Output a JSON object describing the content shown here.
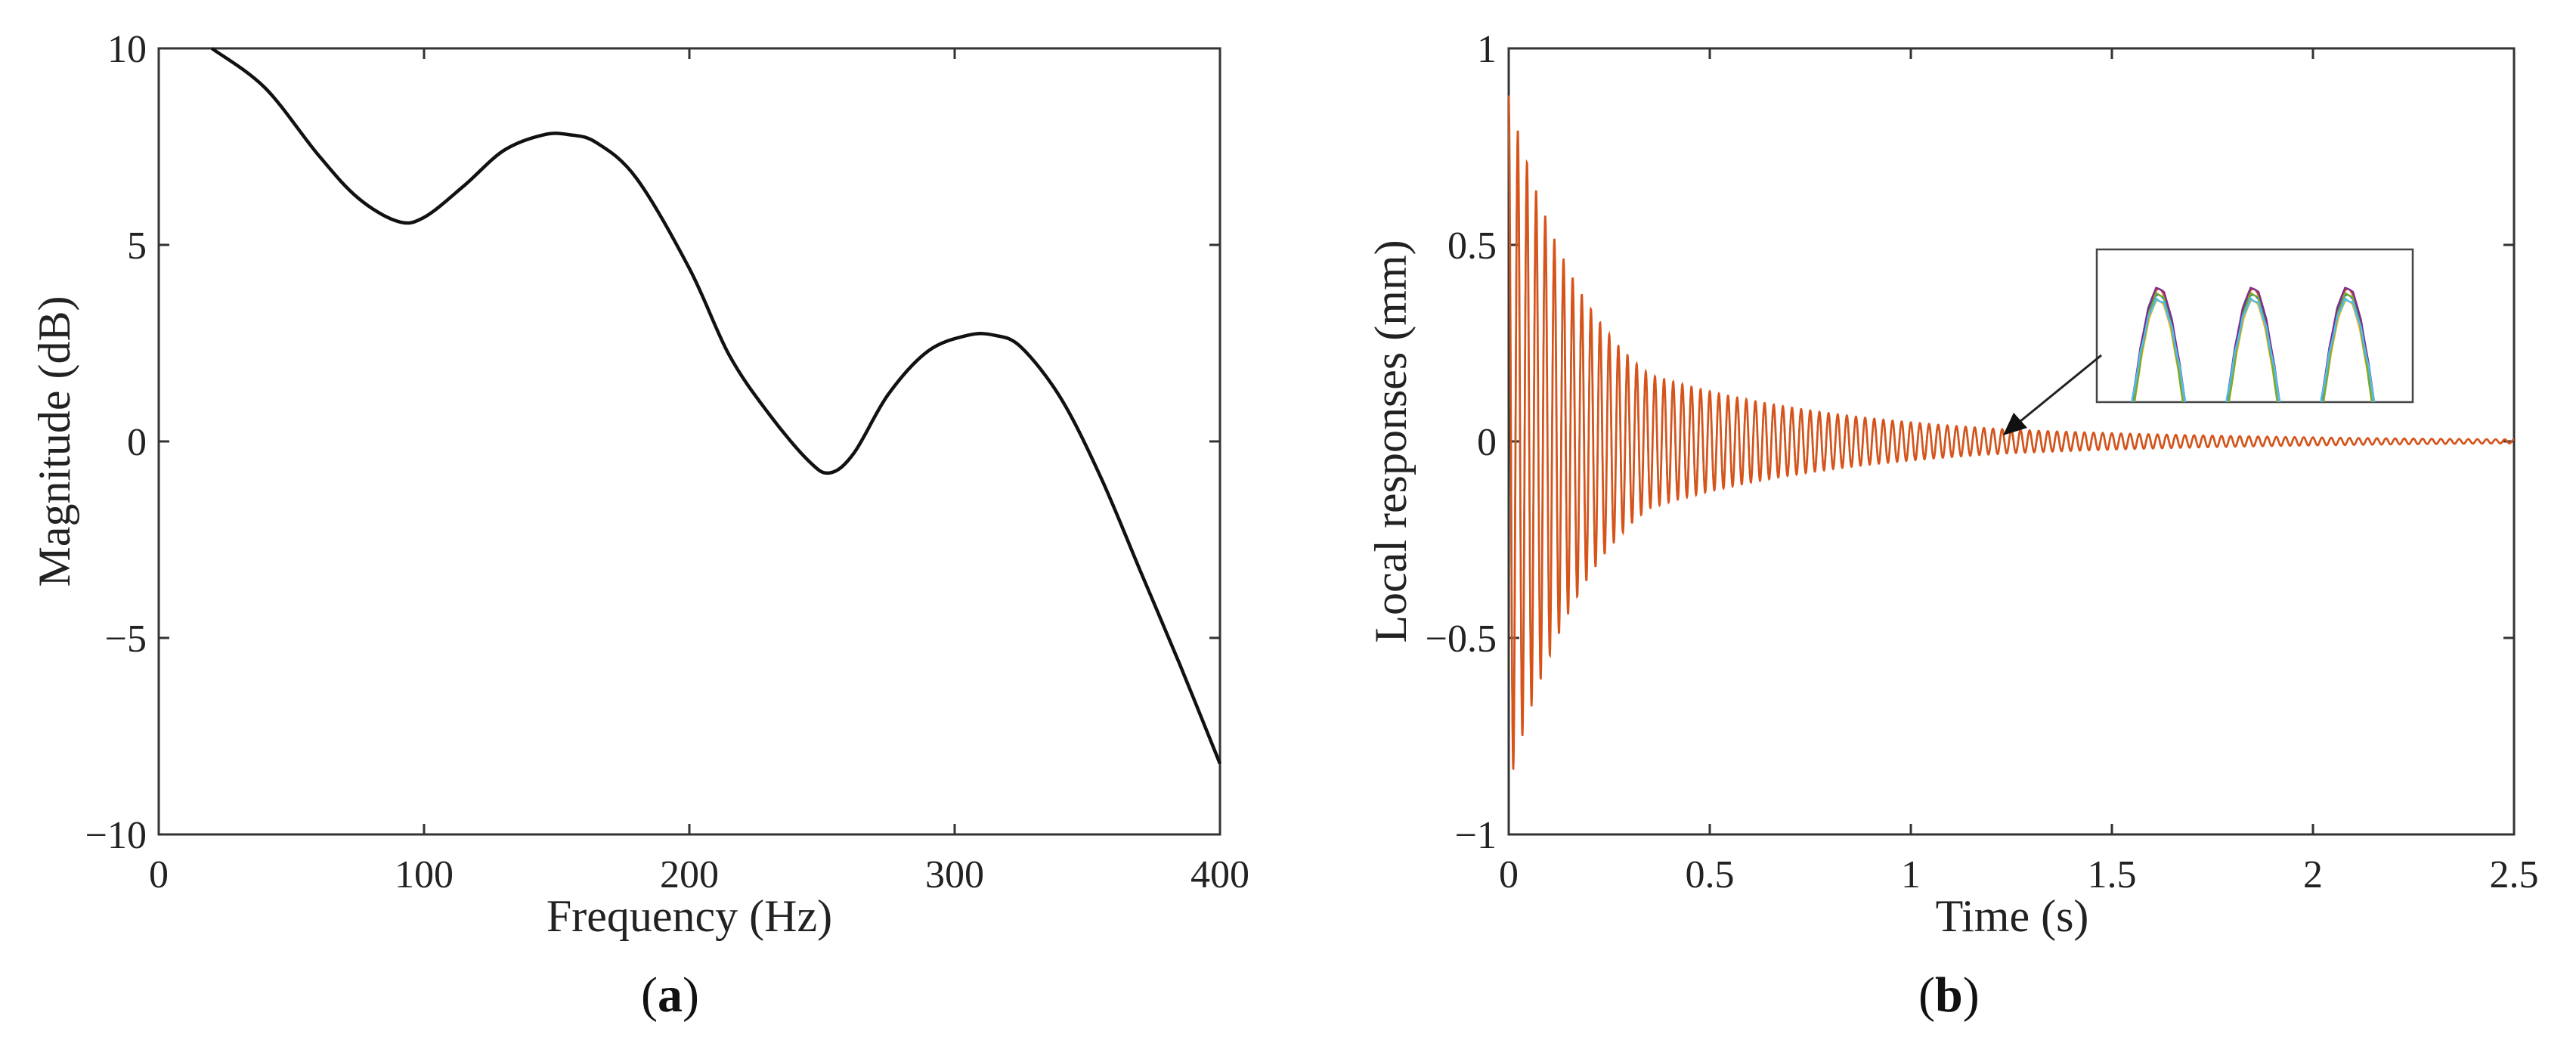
{
  "chart_data": [
    {
      "type": "line",
      "panel_label": "a",
      "xlabel": "Frequency (Hz)",
      "ylabel": "Magnitude (dB)",
      "xlim": [
        0,
        400
      ],
      "ylim": [
        -10,
        10
      ],
      "xticks": [
        0,
        100,
        200,
        300,
        400
      ],
      "yticks": [
        -10,
        -5,
        0,
        5,
        10
      ],
      "xtick_labels": [
        "0",
        "100",
        "200",
        "300",
        "400"
      ],
      "ytick_labels": [
        "−10",
        "−5",
        "0",
        "5",
        "10"
      ],
      "grid": false,
      "series": [
        {
          "name": "magnitude",
          "color": "#111111",
          "x": [
            20,
            40,
            60,
            75,
            90,
            100,
            115,
            130,
            145,
            155,
            165,
            180,
            200,
            215,
            230,
            245,
            253,
            262,
            275,
            290,
            305,
            315,
            325,
            340,
            355,
            370,
            385,
            400
          ],
          "y": [
            10.0,
            9.0,
            7.3,
            6.2,
            5.6,
            5.7,
            6.5,
            7.4,
            7.8,
            7.8,
            7.6,
            6.7,
            4.4,
            2.2,
            0.7,
            -0.5,
            -0.8,
            -0.3,
            1.2,
            2.3,
            2.7,
            2.7,
            2.4,
            1.1,
            -0.9,
            -3.3,
            -5.7,
            -8.2
          ]
        }
      ]
    },
    {
      "type": "line",
      "panel_label": "b",
      "xlabel": "Time (s)",
      "ylabel": "Local responses (mm)",
      "xlim": [
        0,
        2.5
      ],
      "ylim": [
        -1,
        1
      ],
      "xticks": [
        0,
        0.5,
        1,
        1.5,
        2,
        2.5
      ],
      "yticks": [
        -1,
        -0.5,
        0,
        0.5,
        1
      ],
      "xtick_labels": [
        "0",
        "0.5",
        "1",
        "1.5",
        "2",
        "2.5"
      ],
      "ytick_labels": [
        "−1",
        "−0.5",
        "0",
        "0.5",
        "1"
      ],
      "grid": false,
      "signal": {
        "description": "decaying oscillation, many overlapping local responses",
        "frequency_hz": 44,
        "initial_amplitude": 0.88,
        "amplitude_at_0_35s": 0.17,
        "amplitude_at_1_25s": 0.03,
        "amplitude_at_2_5s": 0.005
      },
      "series_colors": [
        "#d95319",
        "#0072bd",
        "#edb120",
        "#7e2f8e",
        "#77ac30",
        "#4dbeee"
      ],
      "inset": {
        "description": "zoomed view of overlapping peaks",
        "peaks": 3,
        "arrow_target_x": 1.22,
        "arrow_target_y": 0.03
      }
    }
  ],
  "figure": {
    "panel_a_caption": "a",
    "panel_b_caption": "b",
    "axis_color": "#333333",
    "line_color": "#111111",
    "accent_color": "#d95319"
  }
}
